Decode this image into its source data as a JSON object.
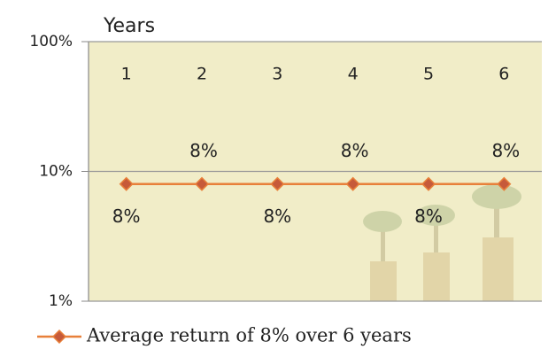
{
  "chart_data": {
    "type": "line",
    "x_label": "Years",
    "categories": [
      "1",
      "2",
      "3",
      "4",
      "5",
      "6"
    ],
    "series": [
      {
        "name": "Average return of 8% over 6 years",
        "color": "#e8803a",
        "marker_color": "#c65a3a",
        "values": [
          8,
          8,
          8,
          8,
          8,
          8
        ],
        "value_labels": [
          "8%",
          "8%",
          "8%",
          "8%",
          "8%",
          "8%"
        ]
      }
    ],
    "log_scale": true,
    "ylim": [
      1,
      100
    ],
    "yticks": [
      {
        "value": 1,
        "label": "1%"
      },
      {
        "value": 10,
        "label": "10%"
      },
      {
        "value": 100,
        "label": "100%"
      }
    ],
    "grid": true,
    "legend": "bottom"
  }
}
